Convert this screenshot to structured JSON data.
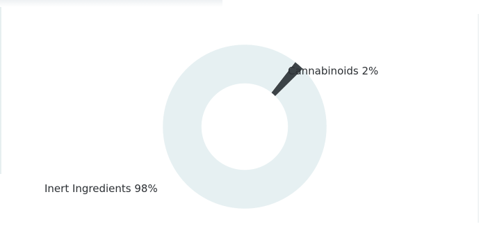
{
  "chart_data": {
    "type": "pie",
    "style": "donut",
    "slices": [
      {
        "label": "Cannabinoids",
        "value": 2,
        "pct_text": "2%",
        "color": "#3c4347"
      },
      {
        "label": "Inert Ingredients",
        "value": 98,
        "pct_text": "98%",
        "color": "#e6f0f2"
      }
    ],
    "labels": {
      "cannabinoids": "Cannabinoids 2%",
      "inert": "Inert Ingredients 98%"
    }
  }
}
